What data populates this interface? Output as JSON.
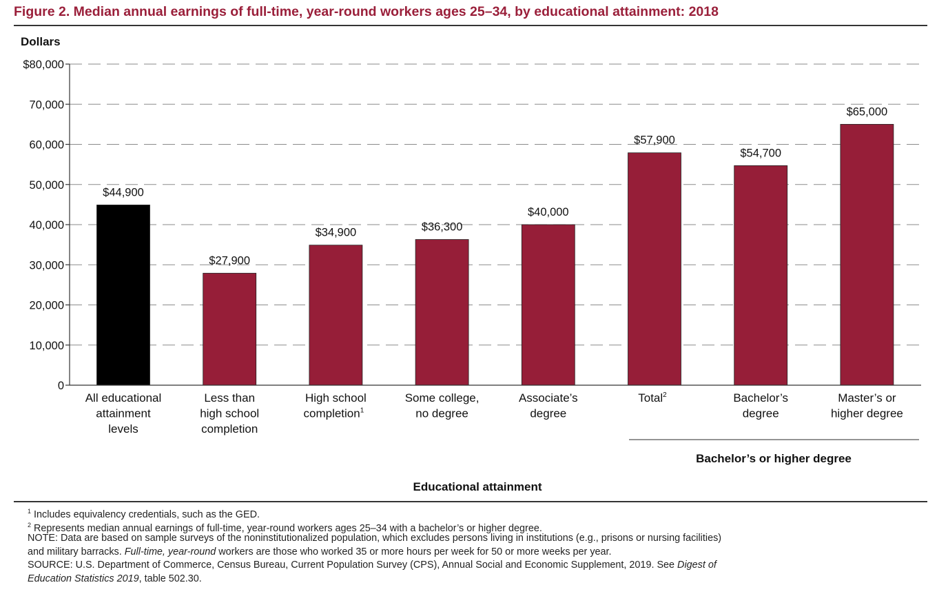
{
  "figure": {
    "title": "Figure 2.   Median annual earnings of full-time, year-round workers ages 25–34, by educational attainment: 2018"
  },
  "chart_data": {
    "type": "bar",
    "ylabel": "Dollars",
    "xlabel": "Educational attainment",
    "ylim": [
      0,
      80000
    ],
    "yticks": [
      0,
      10000,
      20000,
      30000,
      40000,
      50000,
      60000,
      70000,
      80000
    ],
    "ytick_labels": [
      "0",
      "10,000",
      "20,000",
      "30,000",
      "40,000",
      "50,000",
      "60,000",
      "70,000",
      "$80,000"
    ],
    "grid": "dashed horizontal",
    "categories": [
      {
        "lines": [
          "All educational",
          "attainment",
          "levels"
        ],
        "sup": ""
      },
      {
        "lines": [
          "Less than",
          "high school",
          "completion"
        ],
        "sup": ""
      },
      {
        "lines": [
          "High school",
          "completion"
        ],
        "sup": "1"
      },
      {
        "lines": [
          "Some college,",
          "no degree"
        ],
        "sup": ""
      },
      {
        "lines": [
          "Associate’s",
          "degree"
        ],
        "sup": ""
      },
      {
        "lines": [
          "Total"
        ],
        "sup": "2"
      },
      {
        "lines": [
          "Bachelor’s",
          "degree"
        ],
        "sup": ""
      },
      {
        "lines": [
          "Master’s or",
          "higher degree"
        ],
        "sup": ""
      }
    ],
    "values": [
      44900,
      27900,
      34900,
      36300,
      40000,
      57900,
      54700,
      65000
    ],
    "value_labels": [
      "$44,900",
      "$27,900",
      "$34,900",
      "$36,300",
      "$40,000",
      "$57,900",
      "$54,700",
      "$65,000"
    ],
    "colors": [
      "#000000",
      "#961e38",
      "#961e38",
      "#961e38",
      "#961e38",
      "#961e38",
      "#961e38",
      "#961e38"
    ],
    "group_label": "Bachelor’s or higher degree"
  },
  "footnotes": {
    "fn1_mark": "1",
    "fn1": "Includes equivalency credentials, such as the GED.",
    "fn2_mark": "2",
    "fn2": "Represents median annual earnings of full-time, year-round workers ages 25–34 with a bachelor’s or higher degree.",
    "note_1": "NOTE: Data are based on sample surveys of the noninstitutionalized population, which excludes persons living in institutions (e.g., prisons or nursing facilities)",
    "note_2a": "and military barracks. ",
    "note_2b": "Full-time, year-round",
    "note_2c": " workers are those who worked 35 or more hours per week for 50 or more weeks per year.",
    "source_1a": "SOURCE: U.S. Department of Commerce, Census Bureau, Current Population Survey (CPS), Annual Social and Economic Supplement, 2019. See ",
    "source_1b": "Digest of",
    "source_2a": "Education Statistics 2019",
    "source_2b": ", table 502.30."
  }
}
